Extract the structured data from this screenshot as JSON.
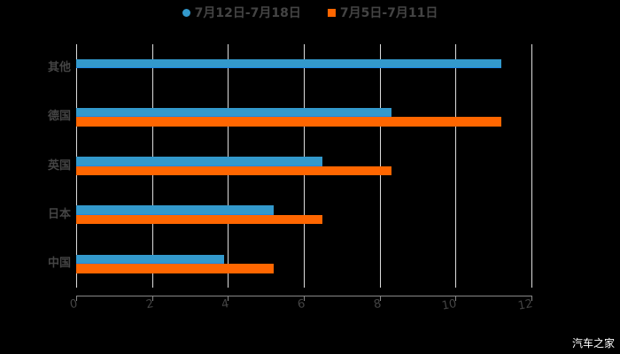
{
  "chart_data": {
    "type": "bar",
    "orientation": "horizontal",
    "title": "",
    "xlabel": "",
    "ylabel": "",
    "categories": [
      "其他",
      "德国",
      "英国",
      "日本",
      "中国"
    ],
    "series": [
      {
        "name": "7月12日-7月18日",
        "color": "#3399cc",
        "marker": "circle",
        "values": [
          11.2,
          8.3,
          6.5,
          5.2,
          3.9
        ]
      },
      {
        "name": "7月5日-7月11日",
        "color": "#ff6600",
        "marker": "square",
        "values": [
          null,
          11.2,
          8.3,
          6.5,
          5.2
        ]
      }
    ],
    "xlim": [
      0,
      12
    ],
    "xticks": [
      0,
      2,
      4,
      6,
      8,
      10,
      12
    ],
    "grid": {
      "vertical": true,
      "horizontal": false
    },
    "legend_position": "top"
  },
  "legend": {
    "items": [
      {
        "label": "7月12日-7月18日",
        "color": "#3399cc"
      },
      {
        "label": "7月5日-7月11日",
        "color": "#ff6600"
      }
    ]
  },
  "watermark": "汽车之家"
}
